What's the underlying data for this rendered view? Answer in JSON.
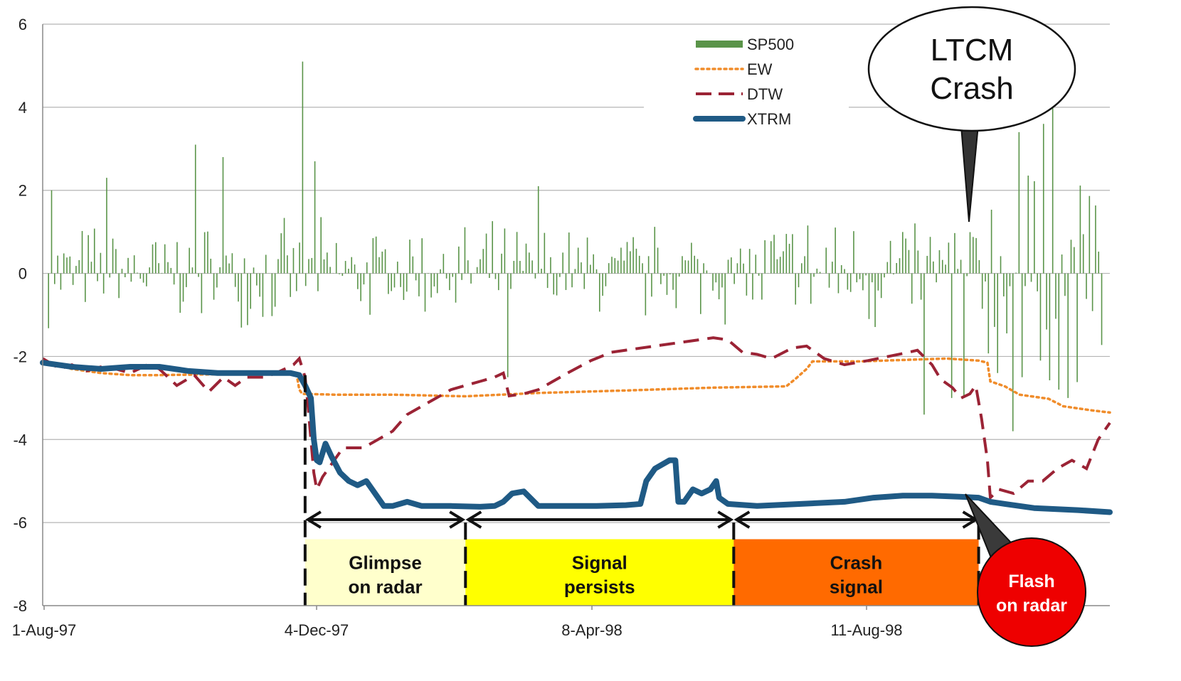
{
  "chart_data": {
    "type": "line",
    "x_ticks": [
      "1-Aug-97",
      "4-Dec-97",
      "8-Apr-98",
      "11-Aug-98"
    ],
    "y_ticks": [
      6,
      4,
      2,
      0,
      -2,
      -4,
      -6,
      -8
    ],
    "ylim": [
      -8,
      6
    ],
    "grid": true,
    "legend_position": "top-right",
    "legend": [
      {
        "key": "sp500",
        "name": "SP500",
        "style": "bar",
        "color": "#5a9449"
      },
      {
        "key": "ew",
        "name": "EW",
        "style": "dotted",
        "color": "#f08c2a"
      },
      {
        "key": "dtw",
        "name": "DTW",
        "style": "dashed",
        "color": "#9b2335"
      },
      {
        "key": "xtrm",
        "name": "XTRM",
        "style": "solid",
        "color": "#1f5a85"
      }
    ],
    "series": {
      "ew": [
        [
          0,
          -2.1
        ],
        [
          5,
          -2.2
        ],
        [
          10,
          -2.3
        ],
        [
          20,
          -2.4
        ],
        [
          30,
          -2.45
        ],
        [
          40,
          -2.45
        ],
        [
          87,
          -2.4
        ],
        [
          88,
          -2.8
        ],
        [
          89,
          -2.9
        ],
        [
          100,
          -2.92
        ],
        [
          120,
          -2.92
        ],
        [
          145,
          -2.96
        ],
        [
          170,
          -2.88
        ],
        [
          200,
          -2.82
        ],
        [
          230,
          -2.75
        ],
        [
          255,
          -2.72
        ],
        [
          258,
          -2.55
        ],
        [
          262,
          -2.3
        ],
        [
          264,
          -2.12
        ],
        [
          280,
          -2.12
        ],
        [
          310,
          -2.05
        ],
        [
          321,
          -2.1
        ],
        [
          324,
          -2.15
        ],
        [
          325,
          -2.6
        ],
        [
          330,
          -2.72
        ],
        [
          335,
          -2.92
        ],
        [
          345,
          -3.02
        ],
        [
          350,
          -3.2
        ],
        [
          360,
          -3.3
        ],
        [
          366,
          -3.35
        ]
      ],
      "dtw": [
        [
          0,
          -2.05
        ],
        [
          6,
          -2.3
        ],
        [
          10,
          -2.2
        ],
        [
          15,
          -2.35
        ],
        [
          20,
          -2.25
        ],
        [
          25,
          -2.3
        ],
        [
          30,
          -2.4
        ],
        [
          36,
          -2.2
        ],
        [
          40,
          -2.3
        ],
        [
          43,
          -2.5
        ],
        [
          46,
          -2.7
        ],
        [
          52,
          -2.45
        ],
        [
          57,
          -2.85
        ],
        [
          62,
          -2.5
        ],
        [
          66,
          -2.7
        ],
        [
          70,
          -2.5
        ],
        [
          76,
          -2.5
        ],
        [
          80,
          -2.4
        ],
        [
          83,
          -2.3
        ],
        [
          86,
          -2.2
        ],
        [
          88,
          -2.05
        ],
        [
          90,
          -2.5
        ],
        [
          91,
          -3.2
        ],
        [
          92,
          -4.0
        ],
        [
          93,
          -4.8
        ],
        [
          94,
          -5.2
        ],
        [
          96,
          -4.9
        ],
        [
          99,
          -4.6
        ],
        [
          103,
          -4.2
        ],
        [
          110,
          -4.2
        ],
        [
          115,
          -4.0
        ],
        [
          120,
          -3.8
        ],
        [
          125,
          -3.4
        ],
        [
          130,
          -3.2
        ],
        [
          135,
          -3.0
        ],
        [
          140,
          -2.8
        ],
        [
          145,
          -2.7
        ],
        [
          150,
          -2.6
        ],
        [
          155,
          -2.5
        ],
        [
          158,
          -2.4
        ],
        [
          160,
          -2.95
        ],
        [
          165,
          -2.9
        ],
        [
          170,
          -2.8
        ],
        [
          175,
          -2.6
        ],
        [
          180,
          -2.4
        ],
        [
          188,
          -2.1
        ],
        [
          195,
          -1.9
        ],
        [
          205,
          -1.8
        ],
        [
          215,
          -1.7
        ],
        [
          225,
          -1.6
        ],
        [
          230,
          -1.55
        ],
        [
          235,
          -1.6
        ],
        [
          240,
          -1.9
        ],
        [
          245,
          -1.95
        ],
        [
          250,
          -2.05
        ],
        [
          257,
          -1.8
        ],
        [
          262,
          -1.75
        ],
        [
          265,
          -1.9
        ],
        [
          268,
          -2.05
        ],
        [
          275,
          -2.2
        ],
        [
          283,
          -2.1
        ],
        [
          290,
          -2.0
        ],
        [
          297,
          -1.9
        ],
        [
          300,
          -1.85
        ],
        [
          305,
          -2.2
        ],
        [
          308,
          -2.55
        ],
        [
          312,
          -2.75
        ],
        [
          315,
          -3.0
        ],
        [
          318,
          -2.9
        ],
        [
          320,
          -2.7
        ],
        [
          322,
          -3.5
        ],
        [
          324,
          -4.5
        ],
        [
          325,
          -5.4
        ],
        [
          328,
          -5.2
        ],
        [
          333,
          -5.3
        ],
        [
          338,
          -5.0
        ],
        [
          343,
          -5.0
        ],
        [
          348,
          -4.7
        ],
        [
          353,
          -4.5
        ],
        [
          358,
          -4.7
        ],
        [
          362,
          -4.0
        ],
        [
          366,
          -3.6
        ]
      ],
      "xtrm": [
        [
          0,
          -2.15
        ],
        [
          10,
          -2.25
        ],
        [
          20,
          -2.3
        ],
        [
          30,
          -2.25
        ],
        [
          40,
          -2.25
        ],
        [
          50,
          -2.35
        ],
        [
          60,
          -2.4
        ],
        [
          70,
          -2.4
        ],
        [
          85,
          -2.4
        ],
        [
          88,
          -2.45
        ],
        [
          90,
          -2.7
        ],
        [
          92,
          -3.0
        ],
        [
          93,
          -4.0
        ],
        [
          94,
          -4.5
        ],
        [
          95,
          -4.55
        ],
        [
          97,
          -4.1
        ],
        [
          99,
          -4.4
        ],
        [
          102,
          -4.8
        ],
        [
          105,
          -5.0
        ],
        [
          108,
          -5.1
        ],
        [
          111,
          -5.0
        ],
        [
          114,
          -5.3
        ],
        [
          117,
          -5.6
        ],
        [
          120,
          -5.6
        ],
        [
          125,
          -5.5
        ],
        [
          130,
          -5.6
        ],
        [
          140,
          -5.6
        ],
        [
          150,
          -5.62
        ],
        [
          155,
          -5.6
        ],
        [
          158,
          -5.5
        ],
        [
          161,
          -5.3
        ],
        [
          165,
          -5.25
        ],
        [
          170,
          -5.6
        ],
        [
          190,
          -5.6
        ],
        [
          200,
          -5.58
        ],
        [
          205,
          -5.55
        ],
        [
          207,
          -5.0
        ],
        [
          210,
          -4.7
        ],
        [
          215,
          -4.5
        ],
        [
          217,
          -4.5
        ],
        [
          218,
          -5.5
        ],
        [
          220,
          -5.5
        ],
        [
          223,
          -5.2
        ],
        [
          226,
          -5.3
        ],
        [
          229,
          -5.2
        ],
        [
          231,
          -5.0
        ],
        [
          232,
          -5.4
        ],
        [
          235,
          -5.55
        ],
        [
          245,
          -5.6
        ],
        [
          260,
          -5.55
        ],
        [
          275,
          -5.5
        ],
        [
          285,
          -5.4
        ],
        [
          295,
          -5.35
        ],
        [
          305,
          -5.35
        ],
        [
          315,
          -5.38
        ],
        [
          321,
          -5.4
        ],
        [
          325,
          -5.5
        ],
        [
          330,
          -5.55
        ],
        [
          340,
          -5.65
        ],
        [
          355,
          -5.7
        ],
        [
          366,
          -5.75
        ]
      ]
    },
    "annotations": {
      "bubble": [
        "LTCM",
        "Crash"
      ],
      "flash": [
        "Flash",
        "on radar"
      ],
      "phases": [
        {
          "label": [
            "Glimpse",
            "on radar"
          ],
          "start": 90,
          "end": 145,
          "color": "#ffffcc"
        },
        {
          "label": [
            "Signal",
            "persists"
          ],
          "start": 145,
          "end": 237,
          "color": "#ffff00"
        },
        {
          "label": [
            "Crash",
            "signal"
          ],
          "start": 237,
          "end": 321,
          "color": "#ff6a00"
        }
      ]
    }
  }
}
